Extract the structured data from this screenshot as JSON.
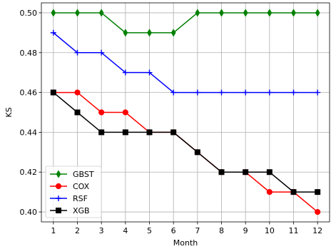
{
  "chart_data": {
    "type": "line",
    "title": "",
    "xlabel": "Month",
    "ylabel": "KS",
    "x": [
      1,
      2,
      3,
      4,
      5,
      6,
      7,
      8,
      9,
      10,
      11,
      12
    ],
    "xlim": [
      0.5,
      12.5
    ],
    "ylim": [
      0.395,
      0.505
    ],
    "yticks": [
      0.4,
      0.42,
      0.44,
      0.46,
      0.48,
      0.5
    ],
    "ytick_labels": [
      "0.40",
      "0.42",
      "0.44",
      "0.46",
      "0.48",
      "0.50"
    ],
    "xtick_labels": [
      "1",
      "2",
      "3",
      "4",
      "5",
      "6",
      "7",
      "8",
      "9",
      "10",
      "11",
      "12"
    ],
    "grid": true,
    "legend_position": "lower-left",
    "series": [
      {
        "name": "GBST",
        "color": "#008000",
        "marker": "thin-diamond",
        "values": [
          0.5,
          0.5,
          0.5,
          0.49,
          0.49,
          0.49,
          0.5,
          0.5,
          0.5,
          0.5,
          0.5,
          0.5
        ]
      },
      {
        "name": "COX",
        "color": "#ff0000",
        "marker": "circle",
        "values": [
          0.46,
          0.46,
          0.45,
          0.45,
          0.44,
          0.44,
          0.43,
          0.42,
          0.42,
          0.41,
          0.41,
          0.4
        ]
      },
      {
        "name": "RSF",
        "color": "#0000ff",
        "marker": "plus",
        "values": [
          0.49,
          0.48,
          0.48,
          0.47,
          0.47,
          0.46,
          0.46,
          0.46,
          0.46,
          0.46,
          0.46,
          0.46
        ]
      },
      {
        "name": "XGB",
        "color": "#000000",
        "marker": "square",
        "values": [
          0.46,
          0.45,
          0.44,
          0.44,
          0.44,
          0.44,
          0.43,
          0.42,
          0.42,
          0.42,
          0.41,
          0.41
        ]
      }
    ]
  }
}
